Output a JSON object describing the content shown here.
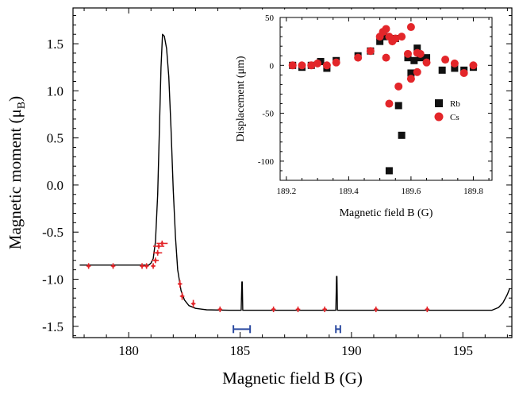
{
  "chart_data": [
    {
      "type": "line",
      "xlabel": "Magnetic field B (G)",
      "ylabel": "Magnetic moment (μB)",
      "ylabel_parts": {
        "base": "Magnetic moment (μ",
        "sub": "B",
        "close": ")"
      },
      "xlim": [
        177.5,
        197.2
      ],
      "ylim": [
        -1.62,
        1.88
      ],
      "xticks": [
        180,
        185,
        190,
        195
      ],
      "xtick_labels": [
        "180",
        "185",
        "190",
        "195"
      ],
      "yticks": [
        -1.5,
        -1.0,
        -0.5,
        0.0,
        0.5,
        1.0,
        1.5
      ],
      "ytick_labels": [
        "-1.5",
        "-1.0",
        "-0.5",
        "0.0",
        "0.5",
        "1.0",
        "1.5"
      ],
      "line_color": "#000000",
      "marker_color": "#e3262a",
      "errorbar_color": "#2b4aa0",
      "curve": {
        "x": [
          177.8,
          180.9,
          181.0,
          181.1,
          181.2,
          181.3,
          181.38,
          181.45,
          181.52,
          181.6,
          181.7,
          181.8,
          181.9,
          182.0,
          182.1,
          182.2,
          182.35,
          182.5,
          182.7,
          183.0,
          183.5,
          184.5,
          185.05,
          185.08,
          185.1,
          185.12,
          185.15,
          185.3,
          188.5,
          189.3,
          189.33,
          189.35,
          189.37,
          189.4,
          189.6,
          196.3,
          196.6,
          196.8,
          197.0,
          197.1
        ],
        "y": [
          -0.85,
          -0.85,
          -0.83,
          -0.78,
          -0.6,
          -0.1,
          0.6,
          1.25,
          1.6,
          1.58,
          1.45,
          1.15,
          0.6,
          -0.05,
          -0.55,
          -0.9,
          -1.12,
          -1.22,
          -1.28,
          -1.31,
          -1.325,
          -1.33,
          -1.33,
          -1.03,
          -1.03,
          -1.33,
          -1.33,
          -1.33,
          -1.33,
          -1.33,
          -0.97,
          -0.97,
          -1.33,
          -1.33,
          -1.33,
          -1.33,
          -1.3,
          -1.25,
          -1.16,
          -1.1
        ]
      },
      "measurements": {
        "x": [
          178.2,
          179.3,
          180.6,
          180.8,
          181.1,
          181.2,
          181.3,
          181.35,
          181.5,
          182.3,
          182.4,
          182.9,
          184.1,
          186.5,
          187.6,
          188.8,
          191.1,
          193.4
        ],
        "y": [
          -0.86,
          -0.86,
          -0.86,
          -0.86,
          -0.86,
          -0.8,
          -0.72,
          -0.65,
          -0.62,
          -1.05,
          -1.18,
          -1.26,
          -1.32,
          -1.32,
          -1.32,
          -1.32,
          -1.32,
          -1.32
        ],
        "xerr": [
          0.1,
          0.1,
          0.1,
          0.1,
          0.1,
          0.15,
          0.2,
          0.25,
          0.25,
          0.1,
          0.1,
          0.1,
          0.1,
          0.1,
          0.1,
          0.1,
          0.1,
          0.1
        ],
        "yerr": [
          0.03,
          0.03,
          0.03,
          0.03,
          0.03,
          0.03,
          0.03,
          0.03,
          0.03,
          0.04,
          0.04,
          0.04,
          0.03,
          0.03,
          0.03,
          0.03,
          0.03,
          0.03
        ]
      },
      "intervals": [
        {
          "x": [
            184.7,
            185.45
          ],
          "y": -1.53
        },
        {
          "x": [
            189.3,
            189.5
          ],
          "y": -1.53
        }
      ]
    },
    {
      "type": "scatter",
      "xlabel": "Magnetic field B (G)",
      "ylabel": "Displacement (μm)",
      "xlim": [
        189.18,
        189.86
      ],
      "ylim": [
        -120,
        50
      ],
      "xticks": [
        189.2,
        189.4,
        189.6,
        189.8
      ],
      "xtick_labels": [
        "189.2",
        "189.4",
        "189.6",
        "189.8"
      ],
      "yticks": [
        -100,
        -50,
        0,
        50
      ],
      "ytick_labels": [
        "-100",
        "-50",
        "0",
        "50"
      ],
      "legend": "center-right",
      "series": [
        {
          "name": "Rb",
          "marker": "square",
          "color": "#111111",
          "points": [
            [
              189.22,
              0
            ],
            [
              189.25,
              -2
            ],
            [
              189.28,
              0
            ],
            [
              189.31,
              4
            ],
            [
              189.33,
              -3
            ],
            [
              189.36,
              5
            ],
            [
              189.43,
              10
            ],
            [
              189.47,
              15
            ],
            [
              189.5,
              25
            ],
            [
              189.52,
              30
            ],
            [
              189.53,
              -110
            ],
            [
              189.54,
              27
            ],
            [
              189.55,
              28
            ],
            [
              189.56,
              -42
            ],
            [
              189.57,
              -73
            ],
            [
              189.59,
              8
            ],
            [
              189.6,
              -8
            ],
            [
              189.61,
              5
            ],
            [
              189.62,
              18
            ],
            [
              189.63,
              8
            ],
            [
              189.65,
              8
            ],
            [
              189.7,
              -5
            ],
            [
              189.74,
              -3
            ],
            [
              189.77,
              -5
            ],
            [
              189.8,
              -2
            ]
          ]
        },
        {
          "name": "Cs",
          "marker": "circle",
          "color": "#e3262a",
          "points": [
            [
              189.22,
              0
            ],
            [
              189.25,
              0
            ],
            [
              189.28,
              0
            ],
            [
              189.3,
              2
            ],
            [
              189.33,
              0
            ],
            [
              189.36,
              3
            ],
            [
              189.43,
              8
            ],
            [
              189.47,
              15
            ],
            [
              189.5,
              30
            ],
            [
              189.51,
              35
            ],
            [
              189.52,
              8
            ],
            [
              189.52,
              38
            ],
            [
              189.53,
              -40
            ],
            [
              189.53,
              30
            ],
            [
              189.54,
              25
            ],
            [
              189.55,
              28
            ],
            [
              189.56,
              -22
            ],
            [
              189.57,
              30
            ],
            [
              189.59,
              12
            ],
            [
              189.6,
              40
            ],
            [
              189.6,
              -14
            ],
            [
              189.62,
              -7
            ],
            [
              189.62,
              13
            ],
            [
              189.63,
              12
            ],
            [
              189.65,
              3
            ],
            [
              189.71,
              6
            ],
            [
              189.74,
              2
            ],
            [
              189.77,
              -8
            ],
            [
              189.8,
              0
            ]
          ]
        }
      ]
    }
  ]
}
